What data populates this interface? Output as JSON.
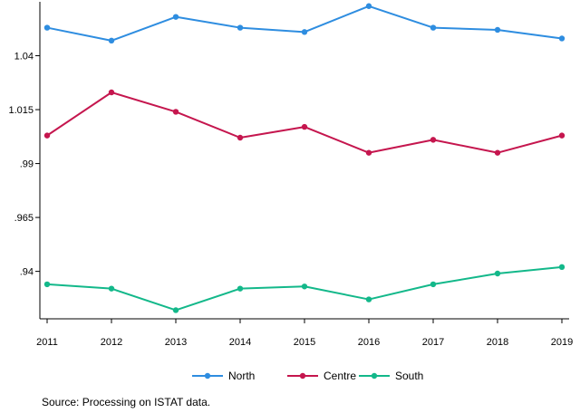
{
  "chart_data": {
    "type": "line",
    "title": "",
    "xlabel": "",
    "ylabel": "",
    "x": [
      2011,
      2012,
      2013,
      2014,
      2015,
      2016,
      2017,
      2018,
      2019
    ],
    "y_ticks": [
      0.94,
      0.965,
      0.99,
      1.015,
      1.04
    ],
    "y_tick_labels": [
      ".94",
      ".965",
      ".99",
      "1.015",
      "1.04"
    ],
    "x_tick_labels": [
      "2011",
      "2012",
      "2013",
      "2014",
      "2015",
      "2016",
      "2017",
      "2018",
      "2019"
    ],
    "ylim": [
      0.918,
      1.065
    ],
    "xlim": [
      2011,
      2019
    ],
    "grid": false,
    "legend_position": "bottom",
    "series": [
      {
        "name": "North",
        "color": "#2e8de0",
        "values": [
          1.053,
          1.047,
          1.058,
          1.053,
          1.051,
          1.063,
          1.053,
          1.052,
          1.048
        ]
      },
      {
        "name": "Centre",
        "color": "#c5164e",
        "values": [
          1.003,
          1.023,
          1.014,
          1.002,
          1.007,
          0.995,
          1.001,
          0.995,
          1.003
        ]
      },
      {
        "name": "South",
        "color": "#13b88a",
        "values": [
          0.934,
          0.932,
          0.922,
          0.932,
          0.933,
          0.927,
          0.934,
          0.939,
          0.942
        ]
      }
    ]
  },
  "footer": {
    "source": "Source: Processing on ISTAT data."
  }
}
